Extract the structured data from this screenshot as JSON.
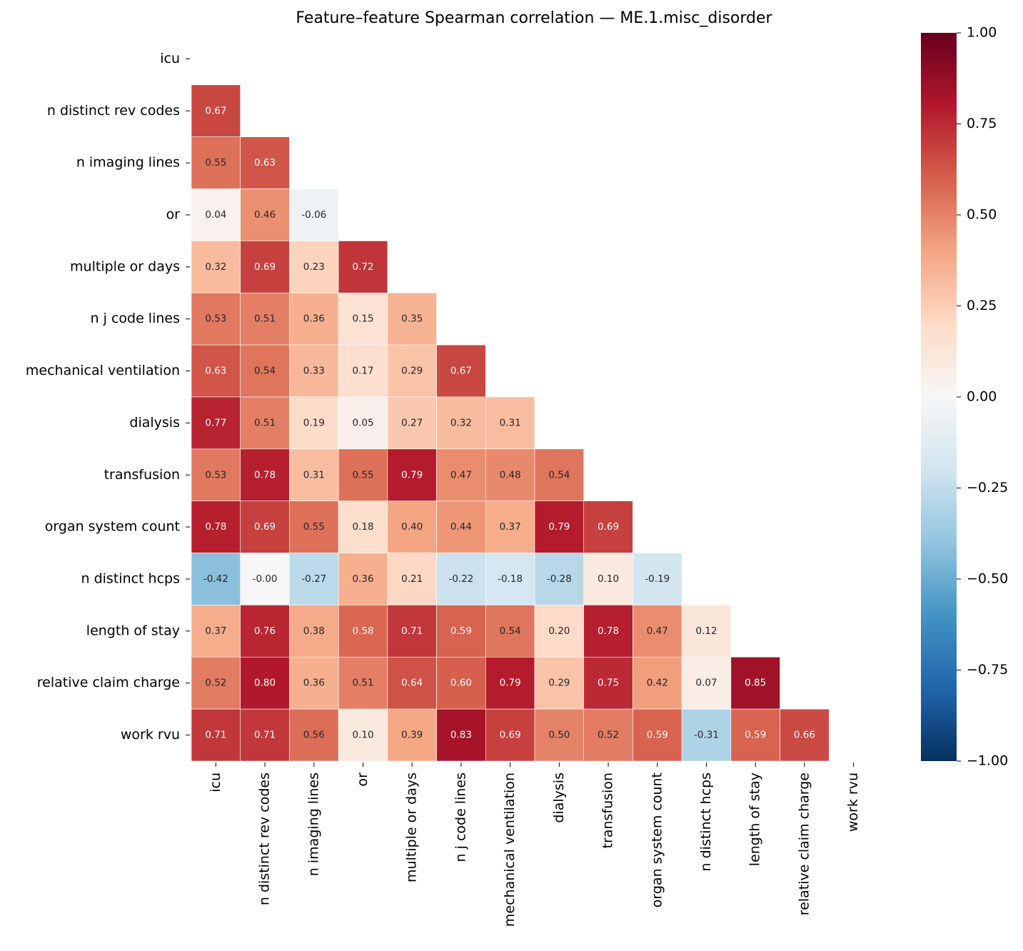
{
  "chart_data": {
    "type": "heatmap",
    "title": "Feature–feature Spearman correlation — ME.1.misc_disorder",
    "categories": [
      "icu",
      "n distinct rev codes",
      "n imaging lines",
      "or",
      "multiple or days",
      "n j code lines",
      "mechanical ventilation",
      "dialysis",
      "transfusion",
      "organ system count",
      "n distinct hcps",
      "length of stay",
      "relative claim charge",
      "work rvu"
    ],
    "colormap": "RdBu_r",
    "clim": [
      -1,
      1
    ],
    "colorbar_ticks": [
      {
        "value": 1,
        "label": "1.00"
      },
      {
        "value": 0.75,
        "label": "0.75"
      },
      {
        "value": 0.5,
        "label": "0.50"
      },
      {
        "value": 0.25,
        "label": "0.25"
      },
      {
        "value": 0,
        "label": "0.00"
      },
      {
        "value": -0.25,
        "label": "−0.25"
      },
      {
        "value": -0.5,
        "label": "−0.50"
      },
      {
        "value": -0.75,
        "label": "−0.75"
      },
      {
        "value": -1,
        "label": "−1.00"
      }
    ],
    "values": [
      [
        null,
        null,
        null,
        null,
        null,
        null,
        null,
        null,
        null,
        null,
        null,
        null,
        null,
        null
      ],
      [
        0.67,
        null,
        null,
        null,
        null,
        null,
        null,
        null,
        null,
        null,
        null,
        null,
        null,
        null
      ],
      [
        0.55,
        0.63,
        null,
        null,
        null,
        null,
        null,
        null,
        null,
        null,
        null,
        null,
        null,
        null
      ],
      [
        0.04,
        0.46,
        -0.06,
        null,
        null,
        null,
        null,
        null,
        null,
        null,
        null,
        null,
        null,
        null
      ],
      [
        0.32,
        0.69,
        0.23,
        0.72,
        null,
        null,
        null,
        null,
        null,
        null,
        null,
        null,
        null,
        null
      ],
      [
        0.53,
        0.51,
        0.36,
        0.15,
        0.35,
        null,
        null,
        null,
        null,
        null,
        null,
        null,
        null,
        null
      ],
      [
        0.63,
        0.54,
        0.33,
        0.17,
        0.29,
        0.67,
        null,
        null,
        null,
        null,
        null,
        null,
        null,
        null
      ],
      [
        0.77,
        0.51,
        0.19,
        0.05,
        0.27,
        0.32,
        0.31,
        null,
        null,
        null,
        null,
        null,
        null,
        null
      ],
      [
        0.53,
        0.78,
        0.31,
        0.55,
        0.79,
        0.47,
        0.48,
        0.54,
        null,
        null,
        null,
        null,
        null,
        null
      ],
      [
        0.78,
        0.69,
        0.55,
        0.18,
        0.4,
        0.44,
        0.37,
        0.79,
        0.69,
        null,
        null,
        null,
        null,
        null
      ],
      [
        -0.42,
        0,
        -0.27,
        0.36,
        0.21,
        -0.22,
        -0.18,
        -0.28,
        0.1,
        -0.19,
        null,
        null,
        null,
        null
      ],
      [
        0.37,
        0.76,
        0.38,
        0.58,
        0.71,
        0.59,
        0.54,
        0.2,
        0.78,
        0.47,
        0.12,
        null,
        null,
        null
      ],
      [
        0.52,
        0.8,
        0.36,
        0.51,
        0.64,
        0.6,
        0.79,
        0.29,
        0.75,
        0.42,
        0.07,
        0.85,
        null,
        null
      ],
      [
        0.71,
        0.71,
        0.56,
        0.1,
        0.39,
        0.83,
        0.69,
        0.5,
        0.52,
        0.59,
        -0.31,
        0.59,
        0.66,
        null
      ]
    ],
    "value_labels": [
      [
        null,
        null,
        null,
        null,
        null,
        null,
        null,
        null,
        null,
        null,
        null,
        null,
        null,
        null
      ],
      [
        "0.67",
        null,
        null,
        null,
        null,
        null,
        null,
        null,
        null,
        null,
        null,
        null,
        null,
        null
      ],
      [
        "0.55",
        "0.63",
        null,
        null,
        null,
        null,
        null,
        null,
        null,
        null,
        null,
        null,
        null,
        null
      ],
      [
        "0.04",
        "0.46",
        "-0.06",
        null,
        null,
        null,
        null,
        null,
        null,
        null,
        null,
        null,
        null,
        null
      ],
      [
        "0.32",
        "0.69",
        "0.23",
        "0.72",
        null,
        null,
        null,
        null,
        null,
        null,
        null,
        null,
        null,
        null
      ],
      [
        "0.53",
        "0.51",
        "0.36",
        "0.15",
        "0.35",
        null,
        null,
        null,
        null,
        null,
        null,
        null,
        null,
        null
      ],
      [
        "0.63",
        "0.54",
        "0.33",
        "0.17",
        "0.29",
        "0.67",
        null,
        null,
        null,
        null,
        null,
        null,
        null,
        null
      ],
      [
        "0.77",
        "0.51",
        "0.19",
        "0.05",
        "0.27",
        "0.32",
        "0.31",
        null,
        null,
        null,
        null,
        null,
        null,
        null
      ],
      [
        "0.53",
        "0.78",
        "0.31",
        "0.55",
        "0.79",
        "0.47",
        "0.48",
        "0.54",
        null,
        null,
        null,
        null,
        null,
        null
      ],
      [
        "0.78",
        "0.69",
        "0.55",
        "0.18",
        "0.40",
        "0.44",
        "0.37",
        "0.79",
        "0.69",
        null,
        null,
        null,
        null,
        null
      ],
      [
        "-0.42",
        "-0.00",
        "-0.27",
        "0.36",
        "0.21",
        "-0.22",
        "-0.18",
        "-0.28",
        "0.10",
        "-0.19",
        null,
        null,
        null,
        null
      ],
      [
        "0.37",
        "0.76",
        "0.38",
        "0.58",
        "0.71",
        "0.59",
        "0.54",
        "0.20",
        "0.78",
        "0.47",
        "0.12",
        null,
        null,
        null
      ],
      [
        "0.52",
        "0.80",
        "0.36",
        "0.51",
        "0.64",
        "0.60",
        "0.79",
        "0.29",
        "0.75",
        "0.42",
        "0.07",
        "0.85",
        null,
        null
      ],
      [
        "0.71",
        "0.71",
        "0.56",
        "0.10",
        "0.39",
        "0.83",
        "0.69",
        "0.50",
        "0.52",
        "0.59",
        "-0.31",
        "0.59",
        "0.66",
        null
      ]
    ]
  }
}
